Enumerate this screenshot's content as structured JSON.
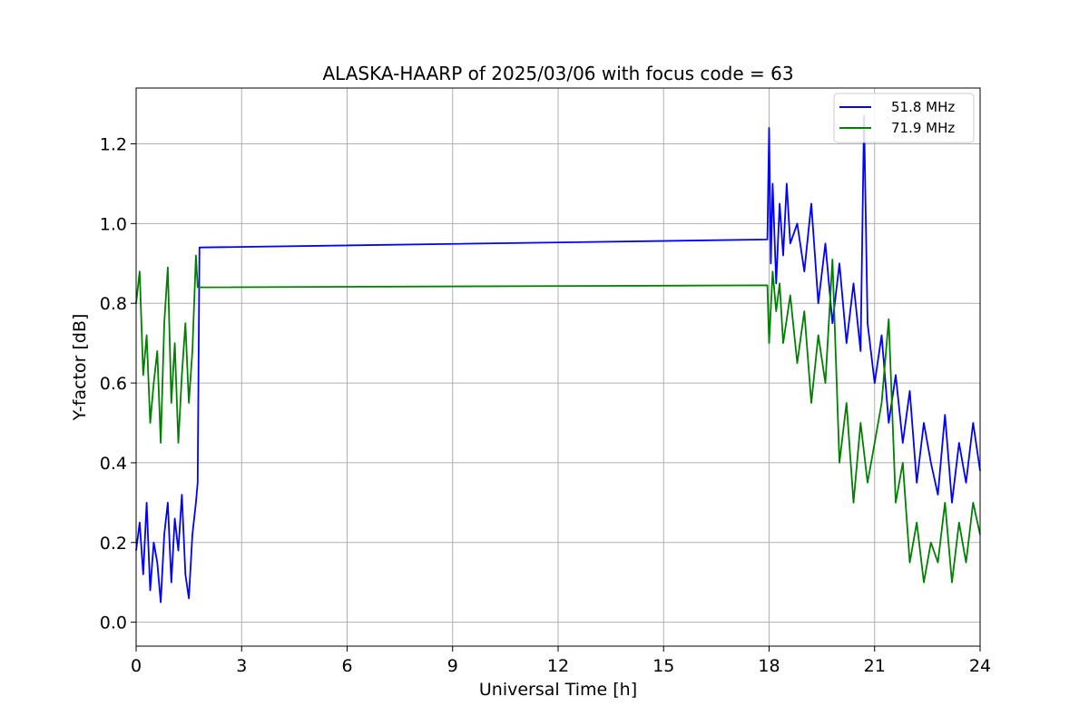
{
  "chart_data": {
    "type": "line",
    "title": "ALASKA-HAARP of 2025/03/06 with focus code = 63",
    "xlabel": "Universal Time [h]",
    "ylabel": "Y-factor [dB]",
    "xlim": [
      0,
      24
    ],
    "ylim": [
      -0.06,
      1.34
    ],
    "xticks": [
      "0",
      "3",
      "6",
      "9",
      "12",
      "15",
      "18",
      "21",
      "24"
    ],
    "yticks": [
      "0.0",
      "0.2",
      "0.4",
      "0.6",
      "0.8",
      "1.0",
      "1.2"
    ],
    "grid": true,
    "legend_position": "top-right",
    "series": [
      {
        "name": "51.8 MHz",
        "color": "#0000ff",
        "x": [
          0.0,
          0.1,
          0.2,
          0.3,
          0.4,
          0.5,
          0.6,
          0.7,
          0.8,
          0.9,
          1.0,
          1.1,
          1.2,
          1.3,
          1.4,
          1.5,
          1.6,
          1.7,
          1.75,
          1.8,
          17.95,
          18.0,
          18.05,
          18.1,
          18.2,
          18.3,
          18.4,
          18.5,
          18.6,
          18.8,
          19.0,
          19.2,
          19.4,
          19.6,
          19.8,
          20.0,
          20.2,
          20.4,
          20.6,
          20.7,
          20.8,
          21.0,
          21.2,
          21.4,
          21.6,
          21.8,
          22.0,
          22.2,
          22.4,
          22.6,
          22.8,
          23.0,
          23.2,
          23.4,
          23.6,
          23.8,
          24.0
        ],
        "y": [
          0.18,
          0.25,
          0.12,
          0.3,
          0.08,
          0.2,
          0.15,
          0.05,
          0.22,
          0.3,
          0.1,
          0.26,
          0.18,
          0.32,
          0.12,
          0.06,
          0.22,
          0.3,
          0.35,
          0.94,
          0.96,
          1.24,
          0.9,
          1.1,
          0.85,
          1.05,
          0.92,
          1.1,
          0.95,
          1.0,
          0.88,
          1.05,
          0.8,
          0.95,
          0.75,
          0.9,
          0.7,
          0.85,
          0.68,
          1.27,
          0.75,
          0.6,
          0.72,
          0.5,
          0.62,
          0.45,
          0.58,
          0.35,
          0.5,
          0.4,
          0.32,
          0.52,
          0.3,
          0.45,
          0.35,
          0.5,
          0.38
        ]
      },
      {
        "name": "71.9 MHz",
        "color": "#008000",
        "x": [
          0.0,
          0.1,
          0.2,
          0.3,
          0.4,
          0.5,
          0.6,
          0.7,
          0.8,
          0.9,
          1.0,
          1.1,
          1.2,
          1.3,
          1.4,
          1.5,
          1.6,
          1.7,
          1.75,
          17.95,
          18.0,
          18.1,
          18.2,
          18.3,
          18.4,
          18.6,
          18.8,
          19.0,
          19.2,
          19.4,
          19.6,
          19.8,
          20.0,
          20.2,
          20.4,
          20.6,
          20.8,
          21.0,
          21.2,
          21.4,
          21.6,
          21.8,
          22.0,
          22.2,
          22.4,
          22.6,
          22.8,
          23.0,
          23.2,
          23.4,
          23.6,
          23.8,
          24.0
        ],
        "y": [
          0.8,
          0.88,
          0.62,
          0.72,
          0.5,
          0.6,
          0.68,
          0.45,
          0.75,
          0.89,
          0.55,
          0.7,
          0.45,
          0.62,
          0.75,
          0.55,
          0.68,
          0.92,
          0.84,
          0.845,
          0.7,
          0.88,
          0.78,
          0.85,
          0.7,
          0.82,
          0.65,
          0.78,
          0.55,
          0.72,
          0.6,
          0.91,
          0.4,
          0.55,
          0.3,
          0.5,
          0.35,
          0.45,
          0.55,
          0.76,
          0.3,
          0.4,
          0.15,
          0.25,
          0.1,
          0.2,
          0.15,
          0.3,
          0.1,
          0.25,
          0.15,
          0.3,
          0.22
        ]
      }
    ]
  }
}
